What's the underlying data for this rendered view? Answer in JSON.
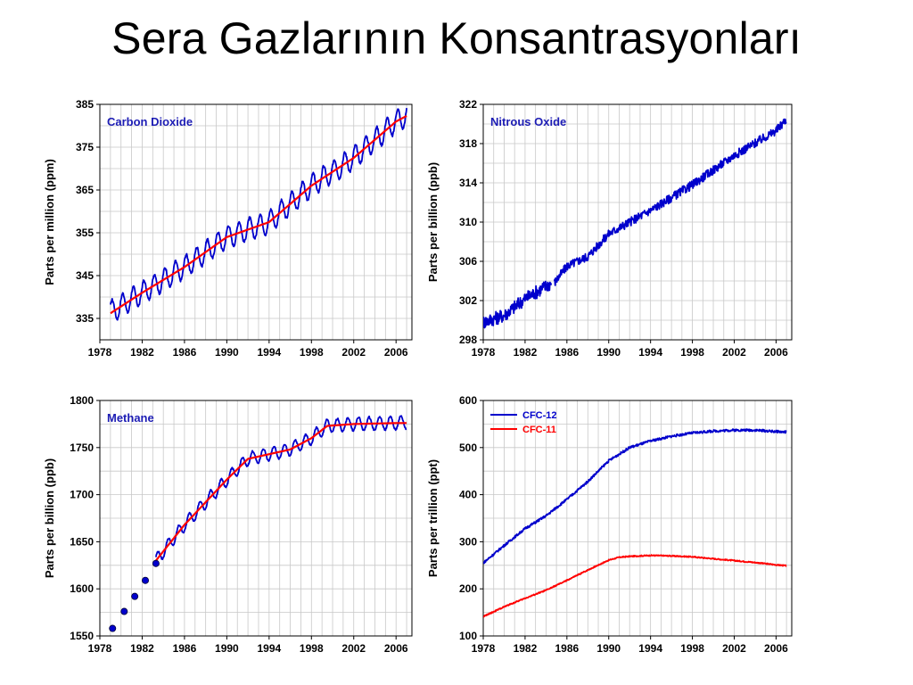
{
  "slide": {
    "title": "Sera Gazlarının Konsantrasyonları"
  },
  "chart_data": [
    {
      "type": "line",
      "label": "Carbon Dioxide",
      "ylabel": "Parts per million (ppm)",
      "xlim": [
        1978,
        2007.5
      ],
      "ylim": [
        330,
        385
      ],
      "xticks": [
        1978,
        1982,
        1986,
        1990,
        1994,
        1998,
        2002,
        2006
      ],
      "yticks": [
        335,
        345,
        355,
        365,
        375,
        385
      ],
      "grid": true,
      "colors": {
        "monthly": "#0000cc",
        "trend": "#ff0000"
      },
      "series": [
        {
          "style": "seasonal",
          "color": "#0000cc",
          "amplitude": 2.6,
          "x": [
            1979.0,
            1982,
            1986,
            1990,
            1994,
            1998,
            2002,
            2006,
            2007.0
          ],
          "y": [
            336.5,
            341,
            347,
            354,
            357.5,
            366,
            372.5,
            381,
            382.5
          ]
        },
        {
          "style": "trend",
          "color": "#ff0000",
          "x": [
            1979.0,
            1982,
            1986,
            1990,
            1994,
            1998,
            2002,
            2006,
            2007.0
          ],
          "y": [
            336.2,
            341,
            347,
            354,
            357.5,
            366,
            372.5,
            381,
            382.3
          ]
        }
      ]
    },
    {
      "type": "line",
      "label": "Nitrous Oxide",
      "ylabel": "Parts per billion (ppb)",
      "xlim": [
        1978,
        2007.5
      ],
      "ylim": [
        298,
        322
      ],
      "xticks": [
        1978,
        1982,
        1986,
        1990,
        1994,
        1998,
        2002,
        2006
      ],
      "yticks": [
        298,
        302,
        306,
        310,
        314,
        318,
        322
      ],
      "grid": true,
      "colors": {
        "monthly": "#0000cc"
      },
      "series": [
        {
          "style": "noisy",
          "color": "#0000cc",
          "noise": 0.7,
          "x": [
            1978,
            1980,
            1982,
            1984.5
          ],
          "y": [
            299.8,
            300.5,
            302.2,
            303.8
          ]
        },
        {
          "style": "noisy",
          "color": "#0000cc",
          "noise": 0.45,
          "x": [
            1984.8,
            1986,
            1988,
            1990,
            1994,
            1998,
            2002,
            2006,
            2007.0
          ],
          "y": [
            303.8,
            305.5,
            306.5,
            308.8,
            311.2,
            313.8,
            316.8,
            319.3,
            320.5
          ]
        }
      ]
    },
    {
      "type": "line",
      "label": "Methane",
      "ylabel": "Parts per billion (ppb)",
      "xlim": [
        1978,
        2007.5
      ],
      "ylim": [
        1550,
        1800
      ],
      "xticks": [
        1978,
        1982,
        1986,
        1990,
        1994,
        1998,
        2002,
        2006
      ],
      "yticks": [
        1550,
        1600,
        1650,
        1700,
        1750,
        1800
      ],
      "grid": true,
      "colors": {
        "monthly": "#0000cc",
        "trend": "#ff0000",
        "points": "#0000cc"
      },
      "points": {
        "x": [
          1979.2,
          1980.3,
          1981.3,
          1982.3,
          1983.3
        ],
        "y": [
          1558,
          1576,
          1592,
          1609,
          1627
        ]
      },
      "series": [
        {
          "style": "seasonal",
          "color": "#0000cc",
          "amplitude": 7,
          "x": [
            1983.3,
            1986,
            1990,
            1992,
            1996,
            1998,
            1999.5,
            2002,
            2006,
            2007.0
          ],
          "y": [
            1630,
            1668,
            1716,
            1738,
            1748,
            1760,
            1773,
            1775,
            1776,
            1777
          ]
        },
        {
          "style": "trend",
          "color": "#ff0000",
          "x": [
            1983.3,
            1986,
            1990,
            1992,
            1996,
            1998,
            1999.5,
            2002,
            2006,
            2007.0
          ],
          "y": [
            1630,
            1668,
            1716,
            1738,
            1748,
            1760,
            1773,
            1775,
            1776,
            1776
          ]
        }
      ]
    },
    {
      "type": "line",
      "label": "",
      "ylabel": "Parts per trillion (ppt)",
      "xlim": [
        1978,
        2007.5
      ],
      "ylim": [
        100,
        600
      ],
      "xticks": [
        1978,
        1982,
        1986,
        1990,
        1994,
        1998,
        2002,
        2006
      ],
      "yticks": [
        100,
        200,
        300,
        400,
        500,
        600
      ],
      "grid": true,
      "legend": "top-left",
      "series": [
        {
          "name": "CFC-12",
          "style": "noisy",
          "color": "#0000cc",
          "noise": 2.5,
          "x": [
            1978,
            1980,
            1982,
            1984,
            1986,
            1988,
            1990,
            1992,
            1994,
            1996,
            1998,
            2000,
            2002,
            2004,
            2006,
            2007.0
          ],
          "y": [
            255,
            292,
            328,
            355,
            390,
            428,
            472,
            500,
            514,
            524,
            531,
            535,
            537,
            537,
            534,
            533
          ]
        },
        {
          "name": "CFC-11",
          "style": "noisy",
          "color": "#ff0000",
          "noise": 1.2,
          "x": [
            1978,
            1980,
            1982,
            1984,
            1986,
            1988,
            1990,
            1991,
            1992,
            1994,
            1996,
            1998,
            2000,
            2002,
            2004,
            2006,
            2007.0
          ],
          "y": [
            141,
            162,
            180,
            197,
            218,
            240,
            261,
            267,
            269,
            271,
            270,
            268,
            264,
            260,
            256,
            251,
            249
          ]
        }
      ]
    }
  ]
}
